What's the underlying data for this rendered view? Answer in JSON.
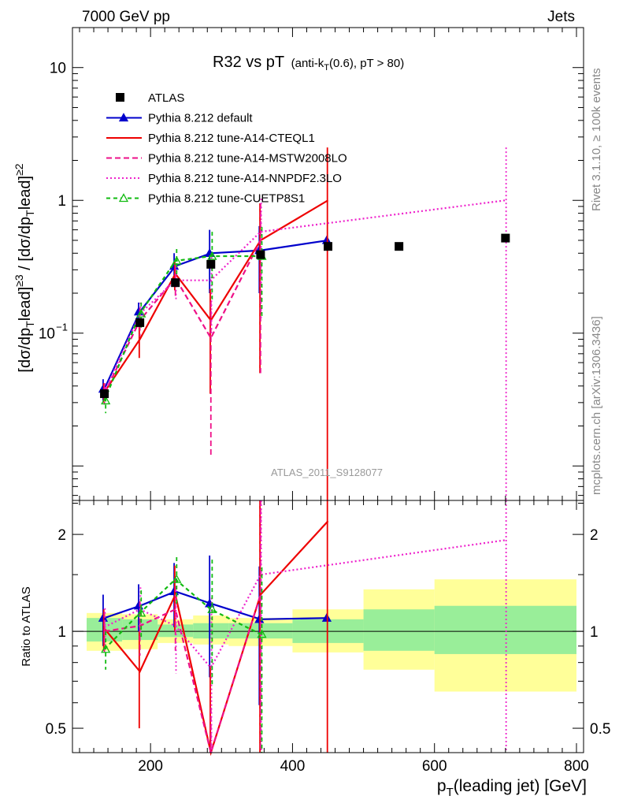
{
  "header": {
    "left": "7000 GeV pp",
    "right": "Jets"
  },
  "side_labels": {
    "rivet": "Rivet 3.1.10, ≥ 100k events",
    "mcplots": "mcplots.cern.ch [arXiv:1306.3436]"
  },
  "watermark": "ATLAS_2011_S9128077",
  "chart_data": {
    "type": "scatter",
    "title": "R32 vs pT",
    "title_suffix": "(anti-kT(0.6), pT > 80)",
    "xlabel": "pT(leading jet) [GeV]",
    "ylabel_main": "[dσ/dpTlead]≥3 / [dσ/dpTlead]≥2",
    "ylabel_ratio": "Ratio to ATLAS",
    "xlim": [
      90,
      810
    ],
    "ylim_main": [
      0.0055,
      20
    ],
    "ylim_ratio": [
      0.42,
      2.55
    ],
    "yscale_main": "log",
    "yscale_ratio": "log",
    "xticks": [
      200,
      400,
      600,
      800
    ],
    "yticks_main": [
      {
        "v": 0.1,
        "label": "10−1"
      },
      {
        "v": 1,
        "label": "1"
      },
      {
        "v": 10,
        "label": "10"
      }
    ],
    "yticks_ratio": [
      {
        "v": 0.5,
        "label": "0.5"
      },
      {
        "v": 1,
        "label": "1"
      },
      {
        "v": 2,
        "label": "2"
      }
    ],
    "data_series": {
      "name": "ATLAS",
      "color": "#000000",
      "x": [
        135,
        185,
        235,
        285,
        355,
        450,
        550,
        700
      ],
      "y": [
        0.035,
        0.12,
        0.24,
        0.33,
        0.39,
        0.45,
        0.45,
        0.52
      ],
      "ratio_bands": [
        {
          "x0": 110,
          "x1": 160,
          "g": [
            0.93,
            1.1
          ],
          "y": [
            0.87,
            1.14
          ]
        },
        {
          "x0": 160,
          "x1": 210,
          "g": [
            0.94,
            1.09
          ],
          "y": [
            0.88,
            1.13
          ]
        },
        {
          "x0": 210,
          "x1": 260,
          "g": [
            0.96,
            1.05
          ],
          "y": [
            0.92,
            1.09
          ]
        },
        {
          "x0": 260,
          "x1": 310,
          "g": [
            0.95,
            1.06
          ],
          "y": [
            0.91,
            1.12
          ]
        },
        {
          "x0": 310,
          "x1": 400,
          "g": [
            0.95,
            1.06
          ],
          "y": [
            0.9,
            1.1
          ]
        },
        {
          "x0": 400,
          "x1": 500,
          "g": [
            0.92,
            1.09
          ],
          "y": [
            0.86,
            1.17
          ]
        },
        {
          "x0": 500,
          "x1": 600,
          "g": [
            0.87,
            1.17
          ],
          "y": [
            0.76,
            1.35
          ]
        },
        {
          "x0": 600,
          "x1": 800,
          "g": [
            0.85,
            1.2
          ],
          "y": [
            0.65,
            1.45
          ]
        }
      ]
    },
    "series": [
      {
        "name": "Pythia 8.212 default",
        "color": "#0000cc",
        "dash": "",
        "marker": "triangle-filled",
        "x": [
          135,
          185,
          235,
          285,
          355,
          450
        ],
        "y": [
          0.038,
          0.145,
          0.32,
          0.4,
          0.42,
          0.5
        ],
        "err": [
          0.007,
          0.025,
          0.08,
          0.2,
          0.22,
          0.0
        ],
        "ratio": [
          1.1,
          1.2,
          1.33,
          1.22,
          1.09,
          1.1
        ],
        "ratio_err": [
          0.2,
          0.2,
          0.3,
          0.5,
          0.5,
          0.0
        ]
      },
      {
        "name": "Pythia 8.212 tune-A14-CTEQL1",
        "color": "#ee0000",
        "dash": "",
        "marker": "none",
        "x": [
          135,
          185,
          235,
          285,
          355,
          450
        ],
        "y": [
          0.036,
          0.09,
          0.28,
          0.125,
          0.5,
          1.0
        ],
        "err": [
          0.006,
          0.025,
          0.07,
          0.09,
          0.45,
          1.5
        ],
        "ratio": [
          1.02,
          0.75,
          1.3,
          0.38,
          1.3,
          2.2
        ],
        "ratio_err": [
          0.15,
          0.25,
          0.3,
          0.4,
          1.5,
          3.0
        ]
      },
      {
        "name": "Pythia 8.212 tune-A14-MSTW2008LO",
        "color": "#ee1188",
        "dash": "7,4",
        "marker": "none",
        "x": [
          135,
          185,
          235,
          285,
          355
        ],
        "y": [
          0.035,
          0.125,
          0.26,
          0.092,
          0.5
        ],
        "err": [
          0.006,
          0.03,
          0.07,
          0.08,
          0.45
        ],
        "ratio": [
          1.0,
          1.04,
          1.17,
          0.28,
          1.3
        ],
        "ratio_err": [
          0.15,
          0.2,
          0.3,
          0.3,
          1.5
        ]
      },
      {
        "name": "Pythia 8.212 tune-A14-NNPDF2.3LO",
        "color": "#ee22cc",
        "dash": "2,3",
        "marker": "none",
        "x": [
          135,
          185,
          235,
          285,
          355,
          700
        ],
        "y": [
          0.036,
          0.14,
          0.25,
          0.25,
          0.58,
          1.0
        ],
        "err": [
          0.006,
          0.03,
          0.07,
          0.15,
          0.45,
          1.5
        ],
        "ratio": [
          1.03,
          1.17,
          1.04,
          0.77,
          1.5,
          1.92
        ],
        "ratio_err": [
          0.15,
          0.2,
          0.3,
          0.5,
          1.5,
          3.0
        ]
      },
      {
        "name": "Pythia 8.212 tune-CUETP8S1",
        "color": "#11bb11",
        "dash": "5,4",
        "marker": "triangle-open",
        "x": [
          135,
          185,
          235,
          285,
          355
        ],
        "y": [
          0.031,
          0.14,
          0.35,
          0.38,
          0.38
        ],
        "err": [
          0.006,
          0.03,
          0.08,
          0.2,
          0.25
        ],
        "ratio": [
          0.88,
          1.14,
          1.45,
          1.17,
          0.98
        ],
        "ratio_err": [
          0.12,
          0.2,
          0.25,
          0.5,
          0.6
        ]
      }
    ]
  }
}
